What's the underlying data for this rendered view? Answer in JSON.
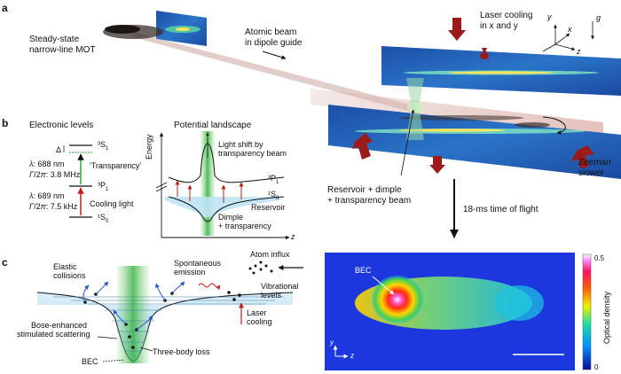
{
  "panels": {
    "a": "a",
    "b": "b",
    "c": "c"
  },
  "a": {
    "mot": [
      "Steady-state",
      "narrow-line MOT"
    ],
    "beam": [
      "Atomic beam",
      "in dipole guide"
    ],
    "cooling": [
      "Laser cooling",
      "in x and y"
    ],
    "zeeman": [
      "Zeeman",
      "slower"
    ],
    "reservoir": [
      "Reservoir + dimple",
      "+ transparency beam"
    ],
    "tof": "18-ms time of flight",
    "axes": {
      "y": "y",
      "x": "x",
      "z": "z",
      "g": "g"
    }
  },
  "b": {
    "levels_title": "Electronic levels",
    "landscape_title": "Potential landscape",
    "lambda1": "688 nm",
    "gamma1": "3.8 MHz",
    "lambda2": "689 nm",
    "gamma2": "7.5 kHz",
    "s1": "3S1",
    "p1": "3P1",
    "s0": "1S0",
    "delta": "Δ",
    "transparency": "'Transparency'",
    "cooling_light": "Cooling light",
    "energy": "Energy",
    "light_shift": [
      "Light shift by",
      "transparency beam"
    ],
    "reservoir": "Reservoir",
    "dimple": [
      "Dimple",
      "+ transparency"
    ],
    "z": "z"
  },
  "c": {
    "elastic": [
      "Elastic",
      "collisions"
    ],
    "spont": [
      "Spontaneous",
      "emission"
    ],
    "influx": "Atom influx",
    "vib": [
      "Vibrational",
      "levels"
    ],
    "laser": [
      "Laser",
      "cooling"
    ],
    "bose": [
      "Bose-enhanced",
      "stimulated scattering"
    ],
    "bec": "BEC",
    "threebody": "Three-body loss"
  },
  "image": {
    "bec": "BEC",
    "cbar_label": "Optical density",
    "cbar_max": "0.5",
    "cbar_min": "0",
    "y": "y",
    "z": "z"
  }
}
